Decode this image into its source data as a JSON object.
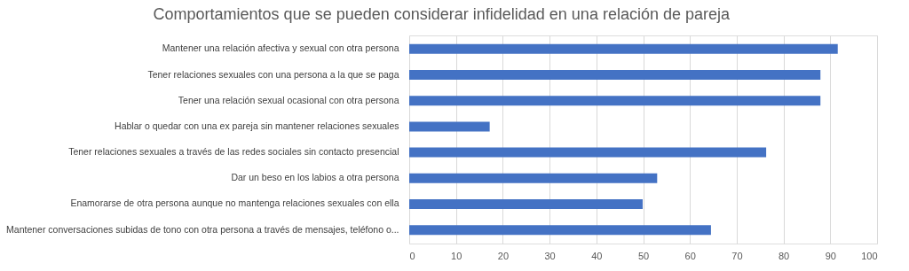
{
  "chart_data": {
    "type": "bar",
    "orientation": "horizontal",
    "title": "Comportamientos que se pueden considerar infidelidad en una relación de pareja",
    "categories": [
      "Mantener una relación afectiva y sexual con otra persona",
      "Tener relaciones sexuales con una persona a la que se paga",
      "Tener una relación sexual ocasional con otra persona",
      "Hablar o quedar con una ex pareja sin mantener relaciones sexuales",
      "Tener relaciones sexuales a través de las redes sociales sin contacto presencial",
      "Dar un beso en los labios a otra persona",
      "Enamorarse de otra persona aunque no mantenga relaciones sexuales con ella",
      "Mantener conversaciones subidas de tono con otra persona a través de mensajes, teléfono o..."
    ],
    "values": [
      91.6,
      87.9,
      87.9,
      17.2,
      76.3,
      53.0,
      49.9,
      64.5
    ],
    "color": "#4472c4",
    "xlim": [
      0,
      100
    ],
    "xticks": [
      0,
      10,
      20,
      30,
      40,
      50,
      60,
      70,
      80,
      90,
      100
    ],
    "grid": "x"
  }
}
